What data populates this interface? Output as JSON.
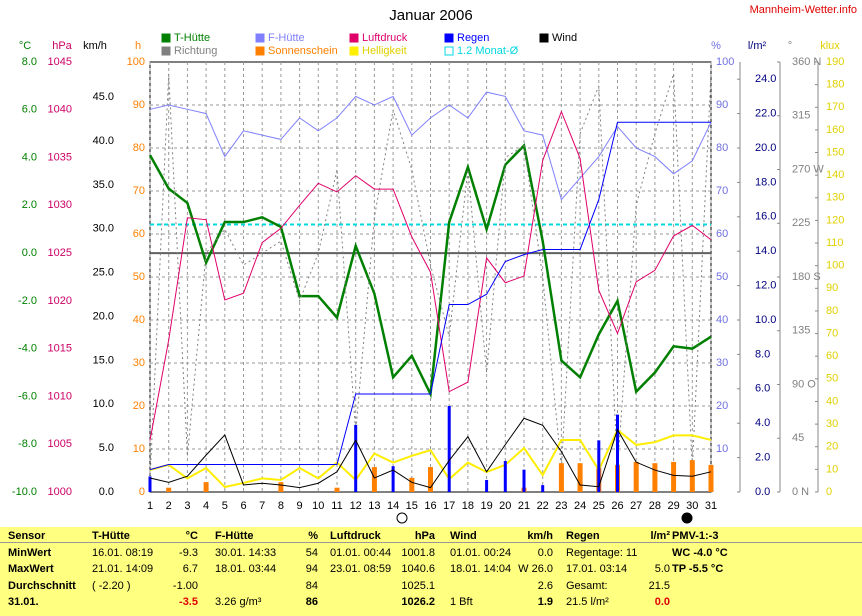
{
  "site": "Mannheim-Wetter.info",
  "chart_data": {
    "type": "line",
    "title": "Januar 2006",
    "grid": true,
    "x": [
      1,
      2,
      3,
      4,
      5,
      6,
      7,
      8,
      9,
      10,
      11,
      12,
      13,
      14,
      15,
      16,
      17,
      18,
      19,
      20,
      21,
      22,
      23,
      24,
      25,
      26,
      27,
      28,
      29,
      30,
      31
    ],
    "xlim": [
      1,
      31
    ],
    "axes": [
      {
        "unit": "°C",
        "color": "#008000",
        "ylim": [
          -10,
          8
        ],
        "yticks": [
          {
            "value": -10,
            "label": "-10.0"
          },
          {
            "value": -8,
            "label": "-8.0"
          },
          {
            "value": -6,
            "label": "-6.0"
          },
          {
            "value": -4,
            "label": "-4.0"
          },
          {
            "value": -2,
            "label": "-2.0"
          },
          {
            "value": 0,
            "label": "0.0"
          },
          {
            "value": 2,
            "label": "2.0"
          },
          {
            "value": 4,
            "label": "4.0"
          },
          {
            "value": 6,
            "label": "6.0"
          },
          {
            "value": 8,
            "label": "8.0"
          }
        ]
      },
      {
        "unit": "hPa",
        "color": "#cc0066",
        "ylim": [
          1000,
          1045
        ],
        "yticks": [
          1000,
          1005,
          1010,
          1015,
          1020,
          1025,
          1030,
          1035,
          1040,
          1045
        ]
      },
      {
        "unit": "km/h",
        "color": "#000000",
        "ylim": [
          0,
          49
        ],
        "yticks": [
          {
            "value": 0,
            "label": "0.0"
          },
          {
            "value": 5,
            "label": "5.0"
          },
          {
            "value": 10,
            "label": "10.0"
          },
          {
            "value": 15,
            "label": "15.0"
          },
          {
            "value": 20,
            "label": "20.0"
          },
          {
            "value": 25,
            "label": "25.0"
          },
          {
            "value": 30,
            "label": "30.0"
          },
          {
            "value": 35,
            "label": "35.0"
          },
          {
            "value": 40,
            "label": "40.0"
          },
          {
            "value": 45,
            "label": "45.0"
          }
        ]
      },
      {
        "unit": "h",
        "color": "#ff8000",
        "ylim": [
          0,
          100
        ],
        "yticks": [
          0,
          10,
          20,
          30,
          40,
          50,
          60,
          70,
          80,
          90,
          100
        ]
      },
      {
        "unit": "%",
        "color": "#7070e0",
        "ylim": [
          0,
          100
        ],
        "yticks": [
          10,
          20,
          30,
          40,
          50,
          60,
          70,
          80,
          90,
          100
        ]
      },
      {
        "unit": "l/m²",
        "color": "#000080",
        "ylim": [
          0,
          25
        ],
        "yticks": [
          {
            "value": 0,
            "label": "0.0"
          },
          {
            "value": 2,
            "label": "2.0"
          },
          {
            "value": 4,
            "label": "4.0"
          },
          {
            "value": 6,
            "label": "6.0"
          },
          {
            "value": 8,
            "label": "8.0"
          },
          {
            "value": 10,
            "label": "10.0"
          },
          {
            "value": 12,
            "label": "12.0"
          },
          {
            "value": 14,
            "label": "14.0"
          },
          {
            "value": 16,
            "label": "16.0"
          },
          {
            "value": 18,
            "label": "18.0"
          },
          {
            "value": 20,
            "label": "20.0"
          },
          {
            "value": 22,
            "label": "22.0"
          },
          {
            "value": 24,
            "label": "24.0"
          }
        ]
      },
      {
        "unit": "°",
        "color": "#808080",
        "ylim": [
          0,
          360
        ],
        "yticks": [
          {
            "value": 0,
            "label": "0 N"
          },
          45,
          {
            "value": 90,
            "label": "90 O"
          },
          135,
          {
            "value": 180,
            "label": "180 S"
          },
          225,
          {
            "value": 270,
            "label": "270 W"
          },
          315,
          {
            "value": 360,
            "label": "360 N"
          }
        ]
      },
      {
        "unit": "klux",
        "color": "#e0d000",
        "ylim": [
          0,
          190
        ],
        "yticks": [
          0,
          10,
          20,
          30,
          40,
          50,
          60,
          70,
          80,
          90,
          100,
          110,
          120,
          130,
          140,
          150,
          160,
          170,
          180,
          190
        ]
      }
    ],
    "ref_lines": [
      {
        "value": 0,
        "axis": 0,
        "color": "#606060"
      },
      {
        "name": "1.2 Monat-Ø",
        "value": 1.2,
        "axis": 0,
        "color": "#00d8e0",
        "dash": true
      }
    ],
    "series": [
      {
        "name": "T-Hütte",
        "color": "#008000",
        "axis": 0,
        "mark": "line",
        "width": 2.5,
        "values": [
          4.1,
          2.7,
          2.1,
          -0.4,
          1.3,
          1.3,
          1.5,
          1.1,
          -1.8,
          -1.8,
          -2.7,
          0.3,
          -1.7,
          -5.2,
          -4.3,
          -5.9,
          1.3,
          3.6,
          1.0,
          3.7,
          4.5,
          0.5,
          -4.5,
          -5.2,
          -3.4,
          -2.0,
          -5.8,
          -5.0,
          -3.9,
          -4.0,
          -3.5
        ]
      },
      {
        "name": "Richtung",
        "color": "#808080",
        "axis": 6,
        "mark": "line",
        "dash": true,
        "width": 1,
        "values": [
          10,
          350,
          30,
          200,
          220,
          190,
          200,
          210,
          160,
          200,
          270,
          50,
          230,
          320,
          270,
          190,
          130,
          270,
          100,
          280,
          290,
          180,
          20,
          300,
          340,
          20,
          240,
          300,
          350,
          20,
          350
        ]
      },
      {
        "name": "F-Hütte",
        "color": "#8080ff",
        "axis": 4,
        "mark": "line",
        "width": 1,
        "values": [
          89,
          90,
          89,
          88,
          78,
          84,
          83,
          82,
          87,
          84,
          87,
          92,
          90,
          92,
          83,
          87,
          90,
          87,
          93,
          92,
          84,
          83,
          68,
          73,
          78,
          85,
          80,
          78,
          74,
          77,
          86
        ]
      },
      {
        "name": "Sonnenschein",
        "color": "#ff8000",
        "axis": 3,
        "mark": "bar",
        "width": 5,
        "values": [
          0,
          1,
          0,
          2.3,
          0,
          0,
          0,
          2.3,
          0,
          0,
          1,
          0,
          5.8,
          0,
          3.3,
          5.8,
          0,
          0,
          0,
          0,
          1,
          0,
          6.7,
          6.7,
          5.6,
          6.3,
          7,
          6.7,
          7,
          7.4,
          6.3
        ]
      },
      {
        "name": "Luftdruck",
        "color": "#e0006a",
        "axis": 1,
        "mark": "line",
        "width": 1,
        "values": [
          1005.4,
          1015.9,
          1028.7,
          1028.5,
          1020.1,
          1020.8,
          1026.1,
          1027.6,
          1030.0,
          1032.3,
          1031.4,
          1033.1,
          1031.7,
          1031.7,
          1026.7,
          1023.0,
          1010.5,
          1011.5,
          1024.5,
          1021.9,
          1022.6,
          1034.7,
          1039.8,
          1034.9,
          1021.1,
          1016.6,
          1022.0,
          1023.2,
          1026.8,
          1027.9,
          1026.4
        ]
      },
      {
        "name": "Helligkeit",
        "color": "#ffee00",
        "axis": 7,
        "mark": "line",
        "width": 2,
        "values": [
          9.7,
          12,
          6,
          10.6,
          2.2,
          4,
          6,
          5.3,
          10.6,
          6,
          13,
          5.3,
          17,
          13,
          16,
          18.5,
          5.7,
          13,
          8.8,
          12,
          19.4,
          7.5,
          23,
          23,
          9.7,
          27.4,
          20.8,
          22,
          25,
          25,
          23
        ]
      },
      {
        "name": "Regen",
        "color": "#0000ff",
        "axis": 5,
        "mark": "line",
        "width": 1,
        "values": [
          1.3,
          1.6,
          1.6,
          1.6,
          1.6,
          1.6,
          1.6,
          1.6,
          1.6,
          1.6,
          1.6,
          5.7,
          5.7,
          5.7,
          5.7,
          5.7,
          10.9,
          10.9,
          11.5,
          13.4,
          13.8,
          14.1,
          14.1,
          14.1,
          17.0,
          21.5,
          21.5,
          21.5,
          21.5,
          21.5,
          21.5
        ]
      },
      {
        "color": "#0000ff",
        "axis": 5,
        "mark": "bar",
        "width": 3,
        "values": [
          0.9,
          0,
          0,
          0,
          0,
          0,
          0,
          0,
          0,
          0,
          0,
          3.9,
          0,
          1.5,
          0,
          0,
          5.0,
          0,
          0.7,
          1.8,
          1.3,
          0.4,
          0,
          0,
          3.0,
          4.5,
          0,
          0,
          0,
          0,
          0
        ]
      },
      {
        "name": "Wind",
        "color": "#000000",
        "axis": 2,
        "mark": "line",
        "width": 1,
        "values": [
          1.6,
          1.1,
          1.8,
          4.2,
          6.5,
          0.8,
          1.0,
          0.8,
          0.5,
          1.0,
          2.3,
          5.9,
          1.6,
          2.5,
          1.1,
          0.5,
          3.6,
          6.3,
          2.3,
          5.4,
          8.4,
          7.6,
          4.6,
          0.8,
          0.6,
          7.1,
          3.4,
          2.5,
          1.9,
          1.8,
          2.3
        ]
      }
    ]
  },
  "table": {
    "rows": [
      [
        "Sensor",
        "T-Hütte",
        "°C",
        "F-Hütte",
        "%",
        "Luftdruck",
        "hPa",
        "Wind",
        "km/h",
        "Regen",
        "l/m²",
        "PMV-1:-3"
      ],
      [
        "MinWert",
        "16.01.  08:19",
        "-9.3",
        "30.01.  14:33",
        "54",
        "01.01.  00:44",
        "1001.8",
        "01.01.  00:24",
        "0.0",
        "Regentage: 11",
        null,
        "WC -4.0 °C"
      ],
      [
        "MaxWert",
        "21.01.  14:09",
        "6.7",
        "18.01.  03:44",
        "94",
        "23.01.  08:59",
        "1040.6",
        "18.01.  14:04",
        "W 26.0",
        "17.01.  03:14",
        "5.0",
        "TP -5.5 °C"
      ],
      [
        "Durchschnitt",
        "( -2.20 )",
        "-1.00",
        null,
        "84",
        null,
        "1025.1",
        null,
        "2.6",
        "Gesamt:",
        "21.5",
        null
      ],
      [
        "31.01.",
        null,
        "-3.5",
        "3.26 g/m³",
        "86",
        null,
        "1026.2",
        "1 Bft",
        "1.9",
        "21.5 l/m²",
        "0.0",
        null
      ]
    ]
  }
}
